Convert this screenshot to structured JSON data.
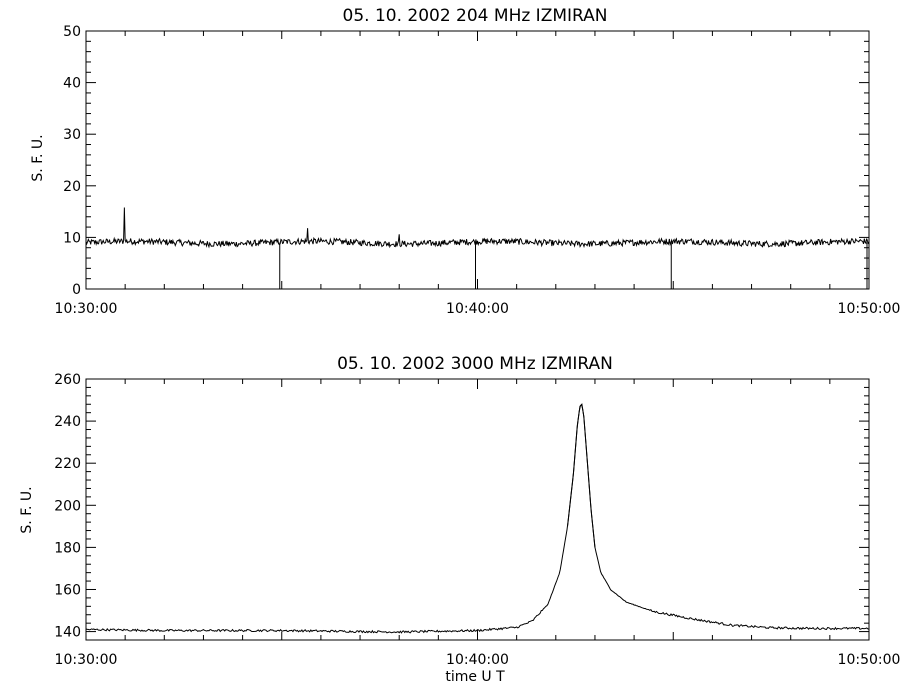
{
  "chart_data": [
    {
      "type": "line",
      "title": "05.  10.  2002    204 MHz    IZMIRAN",
      "xlabel": "",
      "ylabel": "S. F. U.",
      "x_range": [
        "10:30:00",
        "10:50:00"
      ],
      "x_tick_labels": [
        "10:30:00",
        "10:40:00",
        "10:50:00"
      ],
      "x_minor_step_min": 1,
      "ylim": [
        0,
        50
      ],
      "y_ticks": [
        0,
        10,
        20,
        30,
        40,
        50
      ],
      "y_minor_step": 2,
      "grid": false,
      "baseline": 9,
      "noise": 0.6,
      "spikes": [
        {
          "x": "10:30:59",
          "y": 15.8
        },
        {
          "x": "10:35:40",
          "y": 11.8
        },
        {
          "x": "10:38:00",
          "y": 10.6
        }
      ],
      "dropouts": [
        {
          "x": "10:35:00",
          "y": 0
        },
        {
          "x": "10:40:00",
          "y": 0
        },
        {
          "x": "10:45:00",
          "y": 0
        },
        {
          "x": "10:50:00",
          "y": 0
        }
      ]
    },
    {
      "type": "line",
      "title": "05.  10.  2002    3000 MHz    IZMIRAN",
      "xlabel": "time  U T",
      "ylabel": "S. F. U.",
      "x_range": [
        "10:30:00",
        "10:50:00"
      ],
      "x_tick_labels": [
        "10:30:00",
        "10:40:00",
        "10:50:00"
      ],
      "x_minor_step_min": 1,
      "ylim": [
        136,
        260
      ],
      "y_ticks": [
        140,
        160,
        180,
        200,
        220,
        240,
        260
      ],
      "y_minor_step": 4,
      "grid": false,
      "noise": 0.5,
      "points": [
        {
          "x": "10:30:00",
          "y": 141
        },
        {
          "x": "10:32:00",
          "y": 140.5
        },
        {
          "x": "10:35:00",
          "y": 140.5
        },
        {
          "x": "10:38:00",
          "y": 139.8
        },
        {
          "x": "10:40:00",
          "y": 140.5
        },
        {
          "x": "10:41:00",
          "y": 142
        },
        {
          "x": "10:41:24",
          "y": 145
        },
        {
          "x": "10:41:48",
          "y": 153
        },
        {
          "x": "10:42:06",
          "y": 168
        },
        {
          "x": "10:42:18",
          "y": 190
        },
        {
          "x": "10:42:27",
          "y": 215
        },
        {
          "x": "10:42:33",
          "y": 238
        },
        {
          "x": "10:42:37",
          "y": 247
        },
        {
          "x": "10:42:40",
          "y": 248
        },
        {
          "x": "10:42:43",
          "y": 242
        },
        {
          "x": "10:42:48",
          "y": 222
        },
        {
          "x": "10:42:54",
          "y": 198
        },
        {
          "x": "10:43:00",
          "y": 180
        },
        {
          "x": "10:43:09",
          "y": 168
        },
        {
          "x": "10:43:24",
          "y": 160
        },
        {
          "x": "10:43:48",
          "y": 154
        },
        {
          "x": "10:44:30",
          "y": 149.5
        },
        {
          "x": "10:45:30",
          "y": 146
        },
        {
          "x": "10:46:30",
          "y": 143
        },
        {
          "x": "10:47:30",
          "y": 141.8
        },
        {
          "x": "10:48:30",
          "y": 141.5
        },
        {
          "x": "10:50:00",
          "y": 141.5
        }
      ]
    }
  ]
}
